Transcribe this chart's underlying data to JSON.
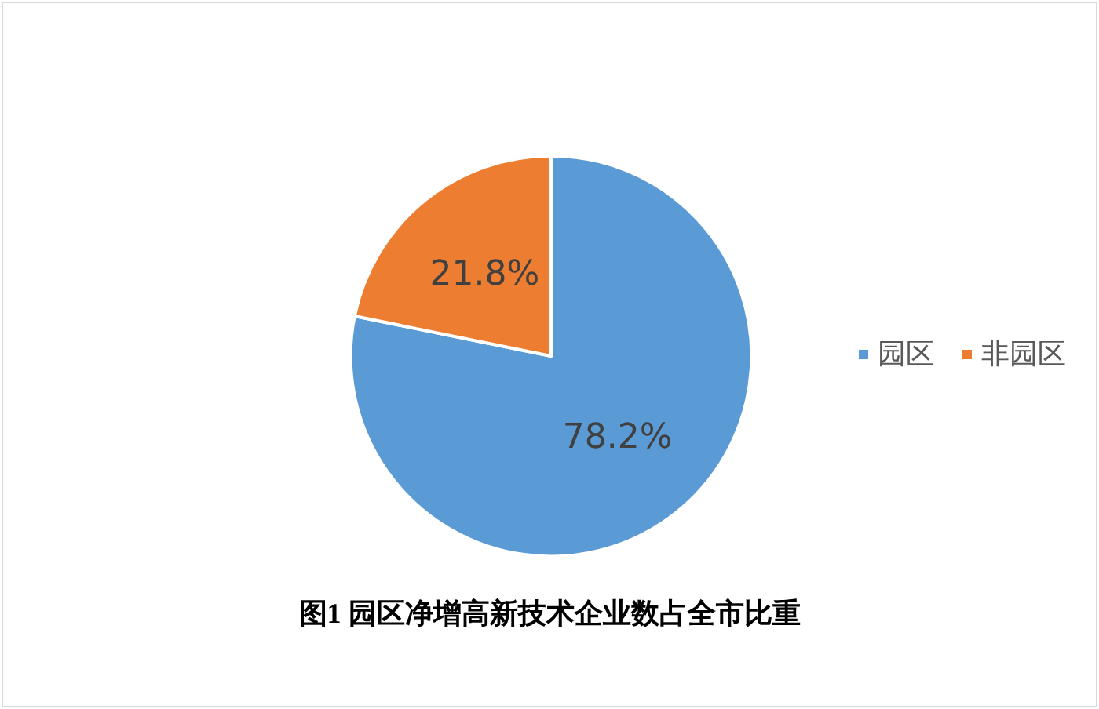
{
  "chart_data": {
    "type": "pie",
    "title": "图1 园区净增高新技术企业数占全市比重",
    "categories": [
      "园区",
      "非园区"
    ],
    "values": [
      78.2,
      21.8
    ],
    "value_labels": [
      "78.2%",
      "21.8%"
    ],
    "colors": [
      "#5b9bd5",
      "#ed7d31"
    ],
    "legend": "right"
  }
}
